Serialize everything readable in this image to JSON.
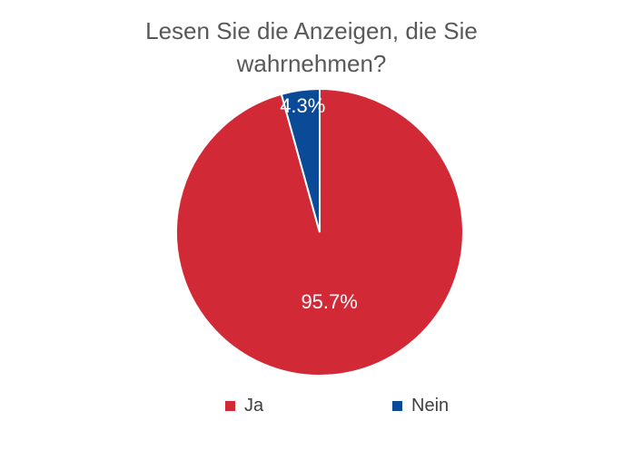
{
  "chart_data": {
    "type": "pie",
    "title": "Lesen Sie die Anzeigen, die Sie wahrnehmen?",
    "title_lines": [
      "Lesen Sie die Anzeigen, die Sie",
      "wahrnehmen?"
    ],
    "categories": [
      "Ja",
      "Nein"
    ],
    "values": [
      95.7,
      4.3
    ],
    "data_labels": [
      "95.7%",
      "4.3%"
    ],
    "colors": [
      "#D12936",
      "#0A4A96"
    ],
    "legend_position": "bottom"
  }
}
